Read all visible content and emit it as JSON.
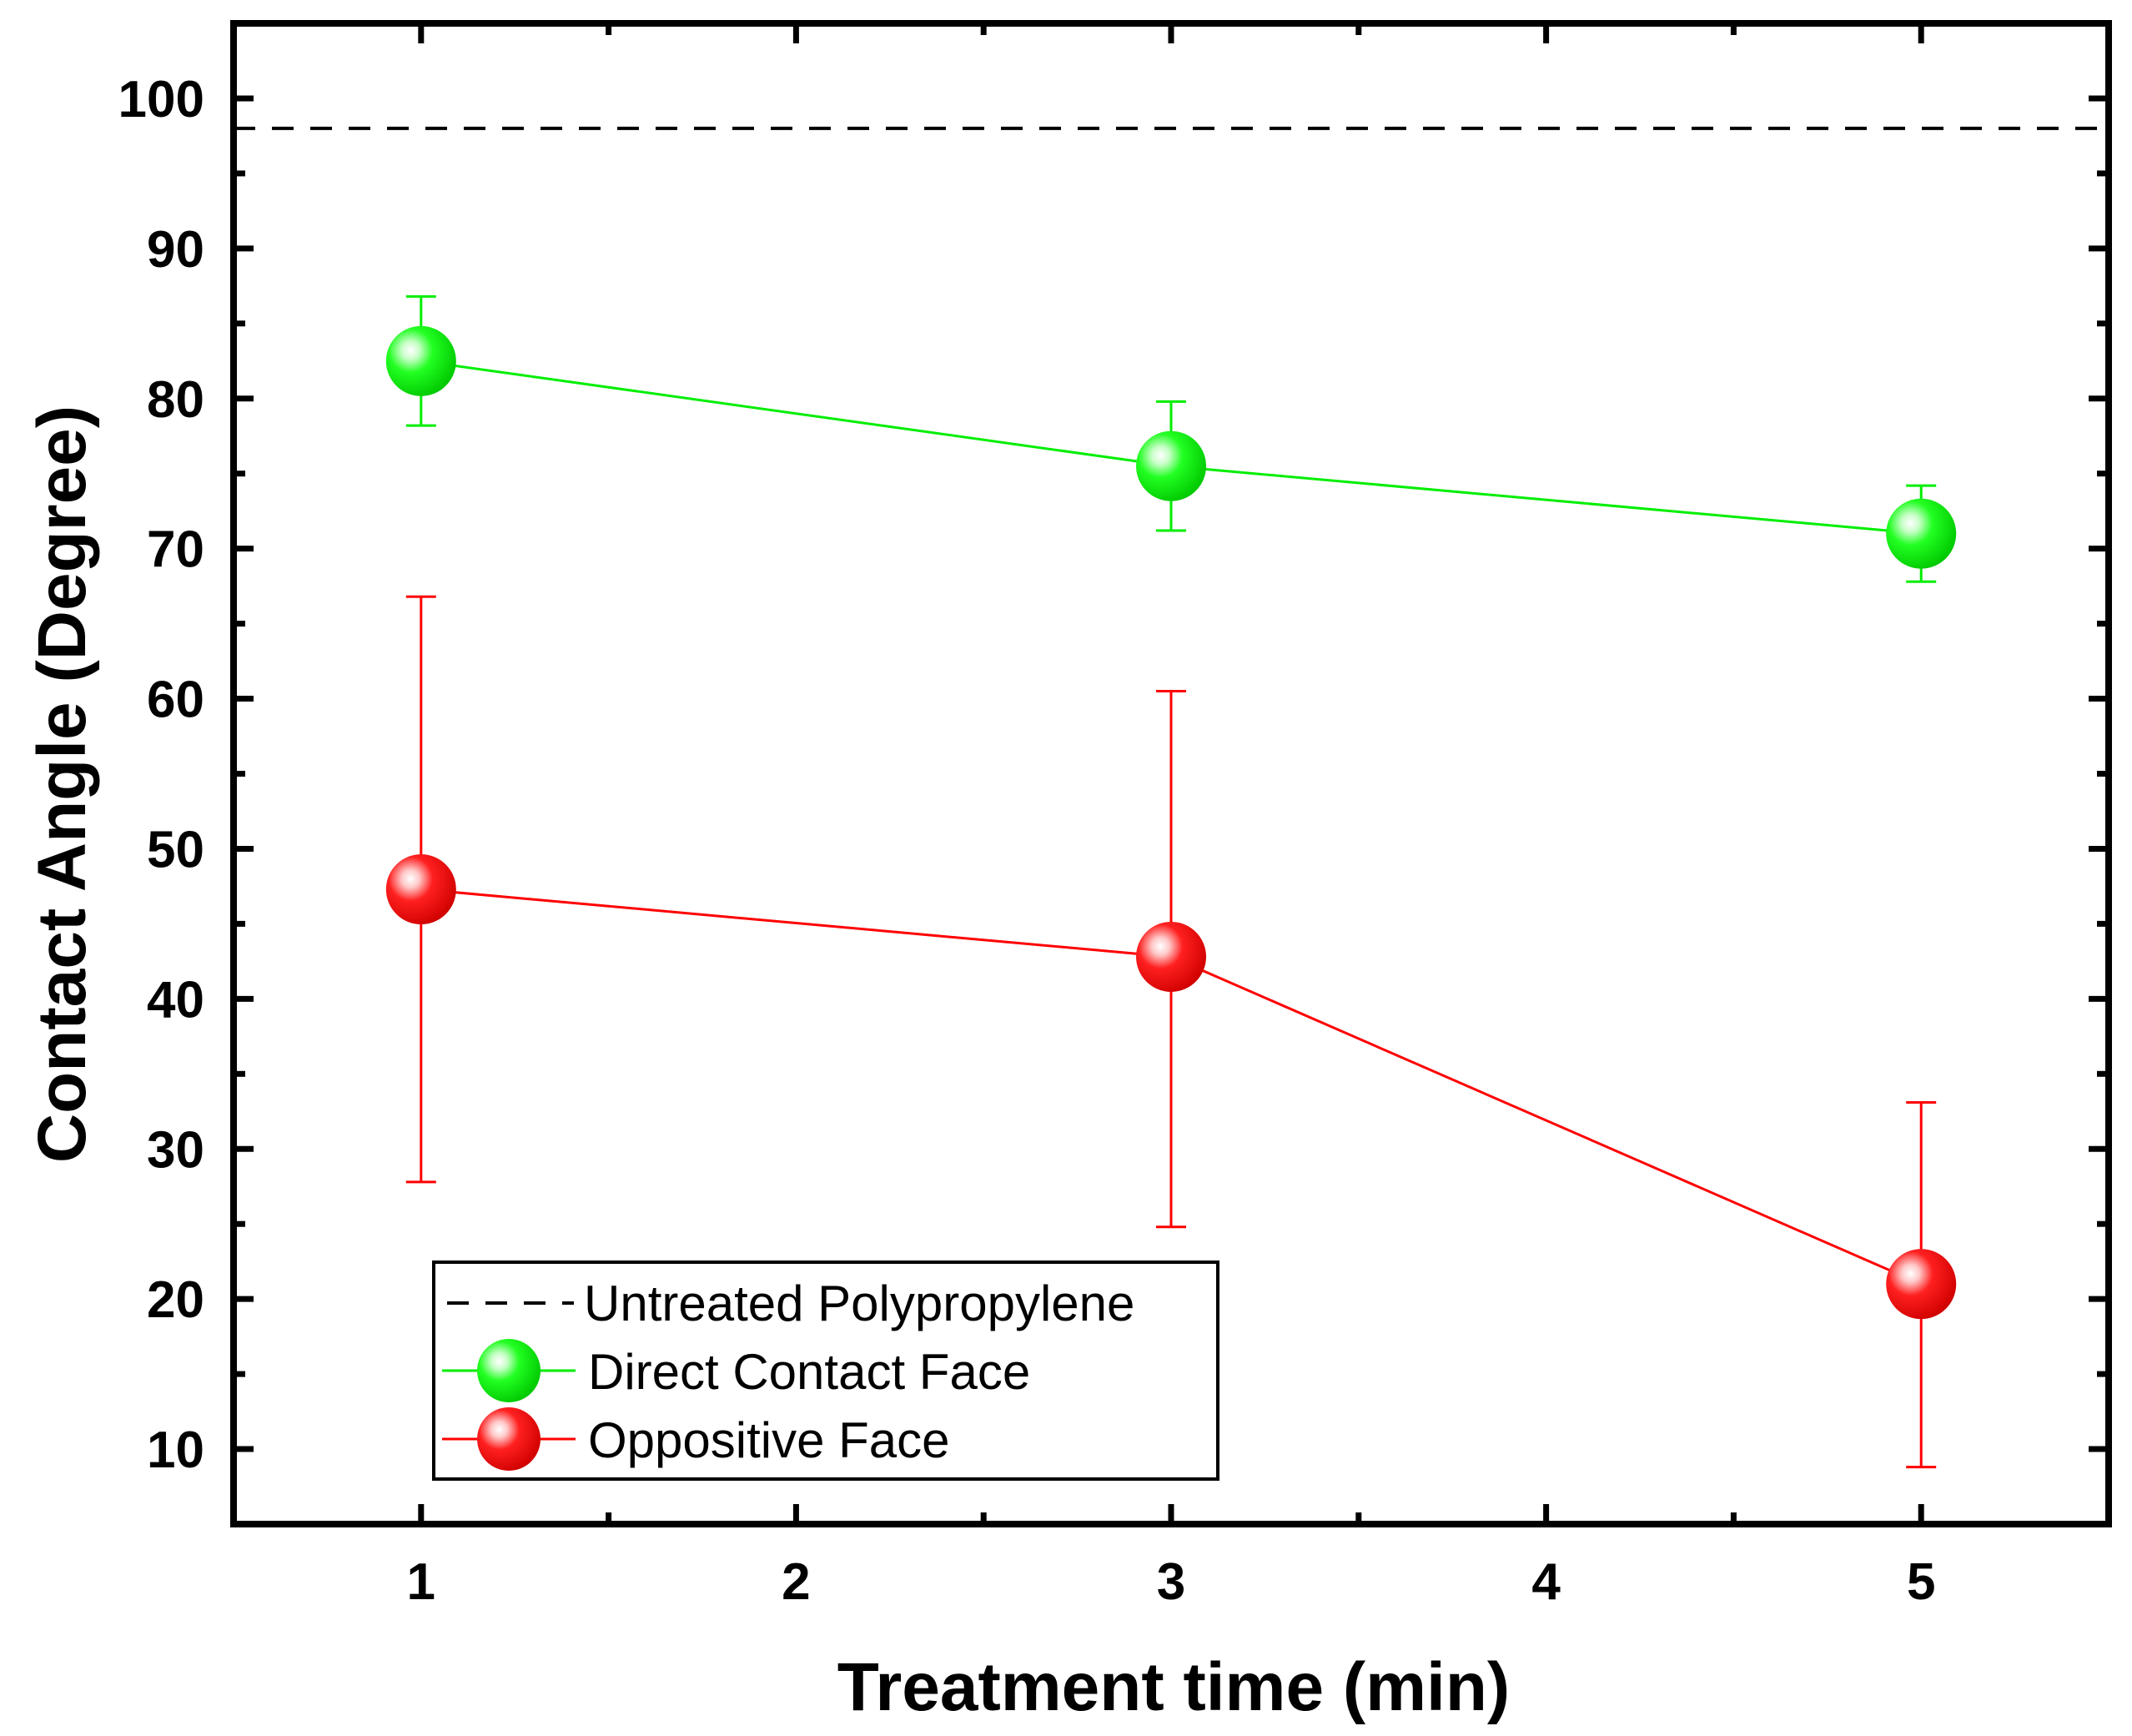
{
  "chart_data": {
    "type": "line",
    "title": "",
    "xlabel": "Treatment time (min)",
    "ylabel": "Contact Angle (Degree)",
    "xlim": [
      0.5,
      5.5
    ],
    "ylim": [
      5,
      105
    ],
    "xticks": [
      1,
      2,
      3,
      4,
      5
    ],
    "yticks": [
      10,
      20,
      30,
      40,
      50,
      60,
      70,
      80,
      90,
      100
    ],
    "grid": false,
    "legend_position": "bottom-left",
    "reference_line": {
      "name": "Untreated Polypropylene",
      "y": 98,
      "style": "dashed",
      "color": "#000000"
    },
    "series": [
      {
        "name": "Direct Contact Face",
        "color": "#00ee00",
        "x": [
          1,
          3,
          5
        ],
        "values": [
          82.5,
          75.5,
          71
        ],
        "err_low": [
          78.2,
          71.2,
          67.8
        ],
        "err_high": [
          86.8,
          79.8,
          74.2
        ]
      },
      {
        "name": "Oppositive Face",
        "color": "#ff0000",
        "x": [
          1,
          3,
          5
        ],
        "values": [
          47.3,
          42.8,
          21
        ],
        "err_low": [
          27.8,
          24.8,
          8.8
        ],
        "err_high": [
          66.8,
          60.5,
          33.1
        ]
      }
    ]
  }
}
